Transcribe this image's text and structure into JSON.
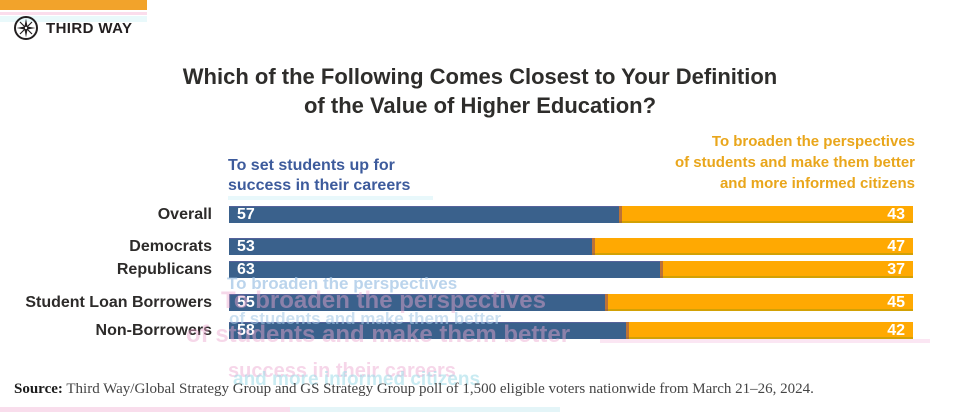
{
  "brand": {
    "name": "THIRD WAY"
  },
  "title": {
    "line1": "Which of the Following Comes Closest to Your Definition",
    "line2": "of the Value of Higher Education?"
  },
  "legend": {
    "left": {
      "lines": [
        "To set students up for",
        "success in their careers"
      ],
      "color": "#3D5B9C"
    },
    "right": {
      "lines": [
        "To broaden the perspectives",
        "of students and make them better",
        "and more informed citizens"
      ],
      "color": "#E9A61B"
    }
  },
  "chart_data": {
    "type": "bar",
    "orientation": "horizontal",
    "stacked": true,
    "stack_total": 100,
    "title": "Which of the Following Comes Closest to Your Definition of the Value of Higher Education?",
    "categories": [
      "Overall",
      "Democrats",
      "Republicans",
      "Student Loan Borrowers",
      "Non-Borrowers"
    ],
    "series": [
      {
        "name": "To set students up for success in their careers",
        "color": "#3A618C",
        "values": [
          57,
          53,
          63,
          55,
          58
        ]
      },
      {
        "name": "To broaden the perspectives of students and make them better and more informed citizens",
        "color": "#FFA902",
        "values": [
          43,
          47,
          37,
          45,
          42
        ]
      }
    ],
    "xlim": [
      0,
      100
    ],
    "grid": false,
    "value_labels": "inside-bar-ends",
    "legend_position": "above-chart"
  },
  "ghost_overlays": {
    "lines": [
      "To broaden the perspectives",
      "To broaden the perspectives",
      "of students and make them better",
      "of students and make them better",
      "success in their careers",
      "and more informed citizens"
    ]
  },
  "footer": {
    "source_label": "Source:",
    "source_text": " Third Way/Global Strategy Group and GS Strategy Group poll of 1,500 eligible voters nationwide from March 21–26, 2024."
  },
  "colors": {
    "bar_blue": "#3A618C",
    "bar_orange": "#FFA902",
    "accent_strip": "#F2A32B",
    "title_text": "#2E2D2B",
    "category_text": "#2D2B2A",
    "footer_text": "#454545"
  }
}
